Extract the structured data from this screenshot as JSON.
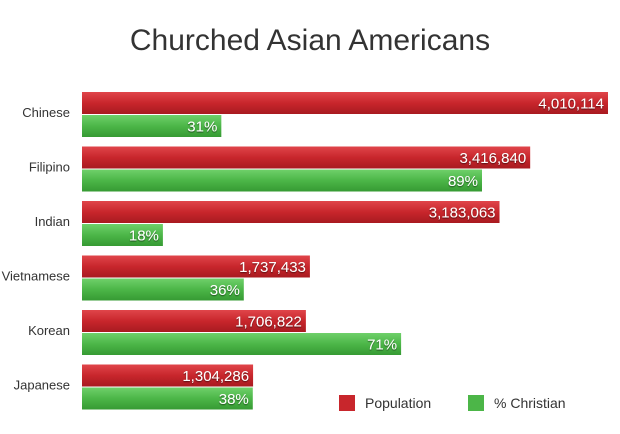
{
  "chart_data": {
    "type": "bar",
    "orientation": "horizontal",
    "title": "Churched Asian Americans",
    "categories": [
      "Chinese",
      "Filipino",
      "Indian",
      "Vietnamese",
      "Korean",
      "Japanese"
    ],
    "series": [
      {
        "name": "Population",
        "values": [
          4010114,
          3416840,
          3183063,
          1737433,
          1706822,
          1304286
        ],
        "labels": [
          "4,010,114",
          "3,416,840",
          "3,183,063",
          "1,737,433",
          "1,706,822",
          "1,304,286"
        ],
        "color": "#c8262c"
      },
      {
        "name": "% Christian",
        "values": [
          31,
          89,
          18,
          36,
          71,
          38
        ],
        "labels": [
          "31%",
          "89%",
          "18%",
          "36%",
          "71%",
          "38%"
        ],
        "color": "#4cb648"
      }
    ],
    "grid": false,
    "legend": "bottom-right"
  }
}
